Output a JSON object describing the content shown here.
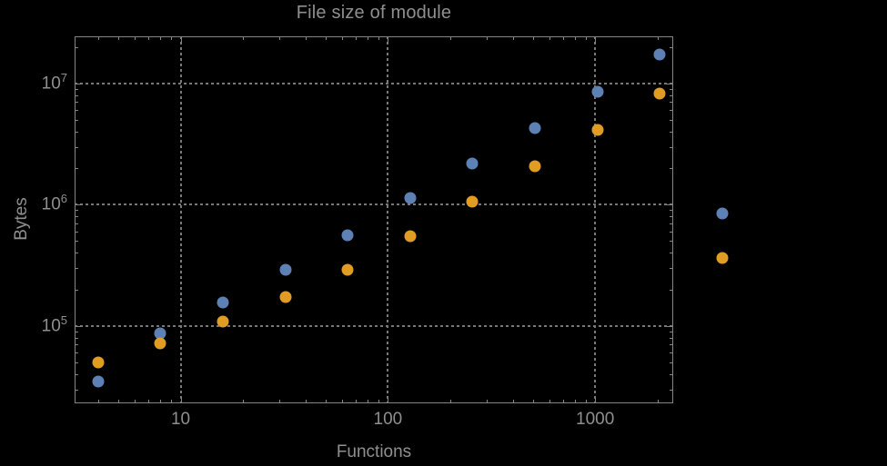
{
  "colors": {
    "background": "#000000",
    "frame": "#848484",
    "grid": "#787878",
    "text": "#8f8f8f",
    "series_blue": "#5e81b5",
    "series_orange": "#e19c24"
  },
  "chart_data": {
    "type": "scatter",
    "title": "File size of module",
    "xlabel": "Functions",
    "ylabel": "Bytes",
    "x_scale": "log",
    "y_scale": "log",
    "xlim": [
      3.08,
      2380
    ],
    "ylim": [
      23000,
      24400000
    ],
    "grid": "dotted gray gridlines at major ticks",
    "legend": "none",
    "x_ticks": [
      {
        "v": 10,
        "label": "10"
      },
      {
        "v": 100,
        "label": "100"
      },
      {
        "v": 1000,
        "label": "1000"
      }
    ],
    "y_ticks": [
      {
        "v": 100000,
        "base": "10",
        "exp": "5"
      },
      {
        "v": 1000000,
        "base": "10",
        "exp": "6"
      },
      {
        "v": 10000000,
        "base": "10",
        "exp": "7"
      }
    ],
    "x": [
      4,
      8,
      16,
      32,
      64,
      128,
      256,
      512,
      1024,
      2048,
      4096
    ],
    "series": [
      {
        "name": "series-blue",
        "color": "#5e81b5",
        "values": [
          35000,
          87000,
          155000,
          290000,
          560000,
          1130000,
          2200000,
          4300000,
          8500000,
          17200000,
          840000
        ]
      },
      {
        "name": "series-orange",
        "color": "#e19c24",
        "values": [
          50000,
          72000,
          108000,
          172000,
          290000,
          550000,
          1050000,
          2080000,
          4100000,
          8200000,
          365000
        ]
      }
    ]
  }
}
